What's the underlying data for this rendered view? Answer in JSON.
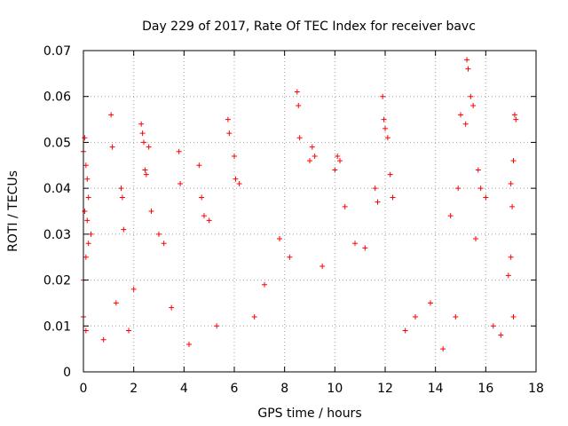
{
  "chart_data": {
    "type": "scatter",
    "title": "Day 229 of 2017, Rate Of TEC Index for receiver bavc",
    "xlabel": "GPS time / hours",
    "ylabel": "ROTI / TECUs",
    "xlim": [
      0,
      18
    ],
    "ylim": [
      0,
      0.07
    ],
    "x_ticks": [
      0,
      2,
      4,
      6,
      8,
      10,
      12,
      14,
      16,
      18
    ],
    "x_tick_labels": [
      "0",
      "2",
      "4",
      "6",
      "8",
      "10",
      "12",
      "14",
      "16",
      "18"
    ],
    "y_ticks": [
      0,
      0.01,
      0.02,
      0.03,
      0.04,
      0.05,
      0.06,
      0.07
    ],
    "y_tick_labels": [
      "0",
      "0.01",
      "0.02",
      "0.03",
      "0.04",
      "0.05",
      "0.06",
      "0.07"
    ],
    "grid": true,
    "marker": "plus",
    "color": "#ff0000",
    "series": [
      {
        "name": "ROTI",
        "x": [
          0.0,
          0.05,
          0.1,
          0.15,
          0.2,
          0.3,
          0.0,
          0.1,
          0.2,
          0.05,
          0.15,
          0.0,
          0.1,
          1.1,
          1.15,
          1.5,
          1.55,
          1.6,
          2.3,
          2.35,
          2.4,
          2.45,
          2.5,
          2.6,
          2.7,
          3.0,
          3.2,
          3.8,
          3.85,
          4.6,
          4.7,
          4.8,
          5.0,
          5.75,
          5.8,
          6.0,
          6.05,
          6.2,
          8.5,
          8.55,
          8.6,
          9.0,
          9.1,
          9.2,
          10.0,
          10.1,
          10.2,
          10.4,
          11.9,
          11.95,
          12.0,
          12.1,
          12.2,
          11.6,
          11.7,
          12.3,
          14.6,
          14.9,
          15.0,
          15.2,
          15.25,
          15.3,
          15.4,
          15.5,
          15.7,
          15.8,
          16.0,
          17.0,
          17.1,
          17.15,
          17.2,
          17.05,
          17.0,
          16.9,
          2.0,
          3.5,
          5.3,
          7.2,
          7.8,
          8.2,
          9.5,
          10.8,
          13.2,
          13.8,
          14.3,
          16.3,
          16.6,
          0.8,
          1.3,
          1.8,
          4.2,
          6.8,
          11.2,
          12.8,
          14.8,
          15.6,
          17.1
        ],
        "y": [
          0.048,
          0.051,
          0.045,
          0.042,
          0.038,
          0.03,
          0.02,
          0.025,
          0.028,
          0.035,
          0.033,
          0.012,
          0.009,
          0.056,
          0.049,
          0.04,
          0.038,
          0.031,
          0.054,
          0.052,
          0.05,
          0.044,
          0.043,
          0.049,
          0.035,
          0.03,
          0.028,
          0.048,
          0.041,
          0.045,
          0.038,
          0.034,
          0.033,
          0.055,
          0.052,
          0.047,
          0.042,
          0.041,
          0.061,
          0.058,
          0.051,
          0.046,
          0.049,
          0.047,
          0.044,
          0.047,
          0.046,
          0.036,
          0.06,
          0.055,
          0.053,
          0.051,
          0.043,
          0.04,
          0.037,
          0.038,
          0.034,
          0.04,
          0.056,
          0.054,
          0.068,
          0.066,
          0.06,
          0.058,
          0.044,
          0.04,
          0.038,
          0.041,
          0.046,
          0.056,
          0.055,
          0.036,
          0.025,
          0.021,
          0.018,
          0.014,
          0.01,
          0.019,
          0.029,
          0.025,
          0.023,
          0.028,
          0.012,
          0.015,
          0.005,
          0.01,
          0.008,
          0.007,
          0.015,
          0.009,
          0.006,
          0.012,
          0.027,
          0.009,
          0.012,
          0.029,
          0.012
        ]
      }
    ]
  }
}
